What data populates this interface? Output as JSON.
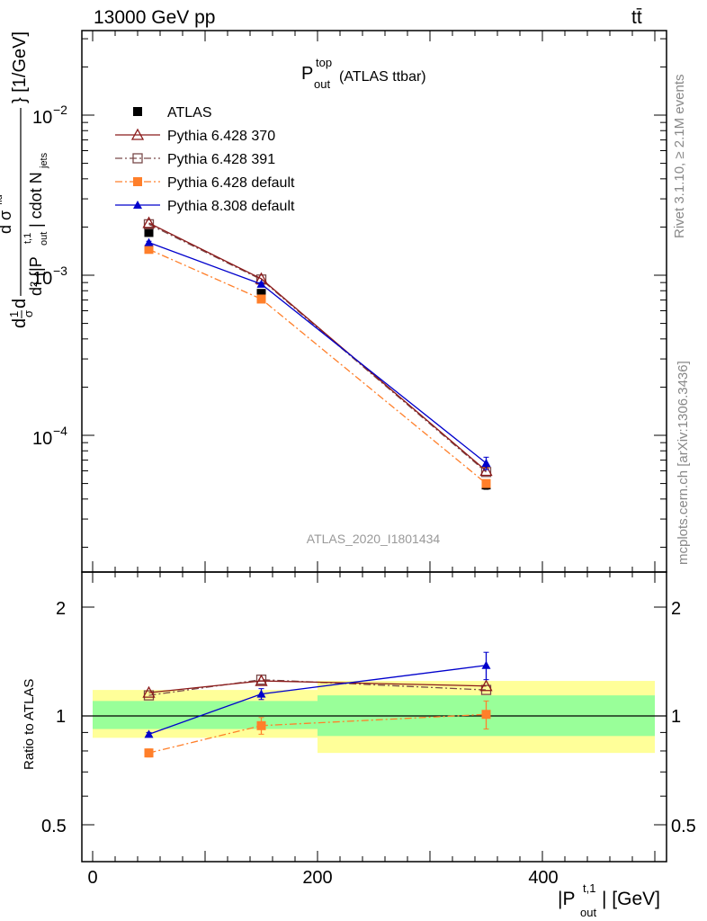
{
  "header": {
    "energy_label": "13000 GeV pp",
    "process_label": "tt̄"
  },
  "side_labels": {
    "rivet": "Rivet 3.1.10, ≥ 2.1M events",
    "mcplots": "mcplots.cern.ch [arXiv:1306.3436]"
  },
  "main_panel": {
    "title_main": "P",
    "title_sup": "top",
    "title_sub": "out",
    "title_suffix": "(ATLAS ttbar)",
    "watermark": "ATLAS_2020_I1801434",
    "ylabel": "dσ/d{|P^{t,1}_out| cdot N_jets} [1/GeV]"
  },
  "ratio_panel": {
    "ylabel": "Ratio to ATLAS",
    "ytick_labels": [
      "0.5",
      "1",
      "2"
    ]
  },
  "xaxis": {
    "label_main": "|P",
    "label_sup": "t,1",
    "label_sub": "out",
    "label_suffix": "| [GeV]",
    "tick_labels": [
      "0",
      "200",
      "400"
    ]
  },
  "main_ytick_labels": [
    {
      "base": "10",
      "exp": "−2"
    },
    {
      "base": "10",
      "exp": "−3"
    },
    {
      "base": "10",
      "exp": "−4"
    }
  ],
  "chart_data": [
    {
      "type": "line",
      "panel": "main",
      "title": "P^top_out (ATLAS ttbar)",
      "xlabel": "|P^{t,1}_out| [GeV]",
      "ylabel": "1/σ dσ/d{|P^{t,1}_out| cdot N_jets} [1/GeV]",
      "xlim": [
        -10,
        510
      ],
      "ylim": [
        1.5e-05,
        0.035
      ],
      "yscale": "log",
      "legend_position": "top-left",
      "x": [
        50,
        150,
        350
      ],
      "series": [
        {
          "name": "ATLAS",
          "values": [
            0.00185,
            0.00077,
            4.9e-05
          ],
          "errors": [
            6e-05,
            3e-05,
            3e-06
          ],
          "color": "#000000",
          "marker": "filled-square",
          "line": "none"
        },
        {
          "name": "Pythia 6.428 370",
          "values": [
            0.00212,
            0.00095,
            6e-05
          ],
          "color": "#8b1a1a",
          "marker": "open-triangle",
          "line": "solid"
        },
        {
          "name": "Pythia 6.428 391",
          "values": [
            0.00208,
            0.00094,
            5.9e-05
          ],
          "color": "#7a4a4a",
          "marker": "open-square",
          "line": "dash-dot"
        },
        {
          "name": "Pythia 6.428 default",
          "values": [
            0.00145,
            0.00071,
            5e-05
          ],
          "color": "#ff7f2a",
          "marker": "filled-square",
          "line": "dash-dot"
        },
        {
          "name": "Pythia 8.308 default",
          "values": [
            0.0016,
            0.00088,
            6.7e-05
          ],
          "errors": [
            3e-05,
            2e-05,
            6e-06
          ],
          "color": "#0000cc",
          "marker": "filled-triangle",
          "line": "solid"
        }
      ]
    },
    {
      "type": "line",
      "panel": "ratio",
      "ylabel": "Ratio to ATLAS",
      "xlim": [
        -10,
        510
      ],
      "ylim": [
        0.4,
        2.4
      ],
      "yscale": "log",
      "reference_line": 1,
      "bins": [
        [
          0,
          100
        ],
        [
          100,
          200
        ],
        [
          200,
          500
        ]
      ],
      "bands": {
        "inner": [
          [
            0.92,
            1.1
          ],
          [
            0.92,
            1.1
          ],
          [
            0.88,
            1.14
          ]
        ],
        "outer": [
          [
            0.87,
            1.18
          ],
          [
            0.87,
            1.18
          ],
          [
            0.79,
            1.25
          ]
        ]
      },
      "x": [
        50,
        150,
        350
      ],
      "series": [
        {
          "name": "Pythia 6.428 370",
          "values": [
            1.16,
            1.25,
            1.21
          ],
          "color": "#8b1a1a",
          "marker": "open-triangle",
          "line": "solid"
        },
        {
          "name": "Pythia 6.428 391",
          "values": [
            1.14,
            1.26,
            1.18
          ],
          "color": "#7a4a4a",
          "marker": "open-square",
          "line": "dash-dot"
        },
        {
          "name": "Pythia 6.428 default",
          "values": [
            0.79,
            0.94,
            1.01
          ],
          "errors": [
            0.02,
            0.05,
            0.09
          ],
          "color": "#ff7f2a",
          "marker": "filled-square",
          "line": "dash-dot"
        },
        {
          "name": "Pythia 8.308 default",
          "values": [
            0.89,
            1.15,
            1.38
          ],
          "errors": [
            0.01,
            0.04,
            0.12
          ],
          "color": "#0000cc",
          "marker": "filled-triangle",
          "line": "solid"
        }
      ]
    }
  ]
}
